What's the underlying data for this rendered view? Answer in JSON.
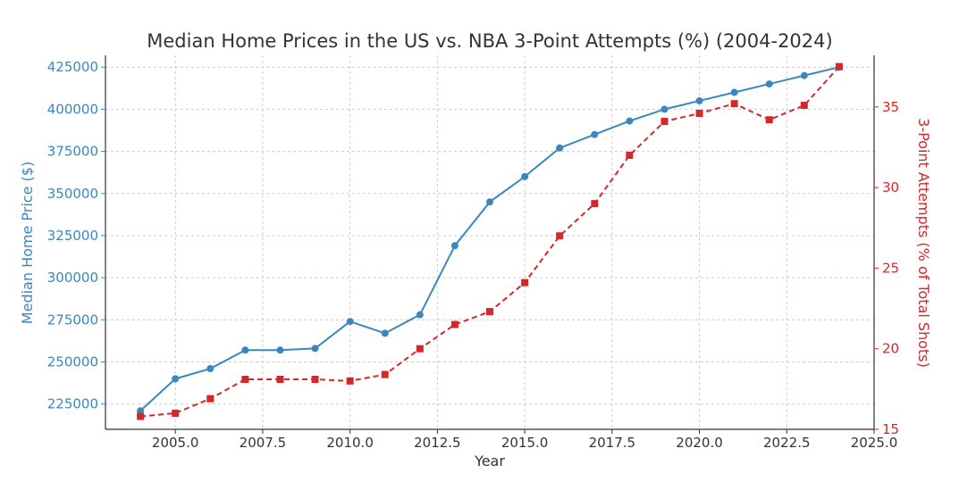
{
  "chart_data": {
    "type": "line",
    "title": "Median Home Prices in the US vs. NBA 3-Point Attempts (%) (2004-2024)",
    "xlabel": "Year",
    "ylabel_left": "Median Home Price ($)",
    "ylabel_right": "3-Point Attempts (% of Total Shots)",
    "xlim": [
      2003.0,
      2025.0
    ],
    "ylim_left": [
      210000,
      432000
    ],
    "ylim_right": [
      15,
      38.2
    ],
    "x_ticks": [
      2005.0,
      2007.5,
      2010.0,
      2012.5,
      2015.0,
      2017.5,
      2020.0,
      2022.5,
      2025.0
    ],
    "x_tick_labels": [
      "2005.0",
      "2007.5",
      "2010.0",
      "2012.5",
      "2015.0",
      "2017.5",
      "2020.0",
      "2022.5",
      "2025.0"
    ],
    "y_left_ticks": [
      225000,
      250000,
      275000,
      300000,
      325000,
      350000,
      375000,
      400000,
      425000
    ],
    "y_left_tick_labels": [
      "225000",
      "250000",
      "275000",
      "300000",
      "325000",
      "350000",
      "375000",
      "400000",
      "425000"
    ],
    "y_right_ticks": [
      15,
      20,
      25,
      30,
      35
    ],
    "y_right_tick_labels": [
      "15",
      "20",
      "25",
      "30",
      "35"
    ],
    "grid": true,
    "x": [
      2004,
      2005,
      2006,
      2007,
      2008,
      2009,
      2010,
      2011,
      2012,
      2013,
      2014,
      2015,
      2016,
      2017,
      2018,
      2019,
      2020,
      2021,
      2022,
      2023,
      2024
    ],
    "series": [
      {
        "axis": "left",
        "color": "#3a87c0",
        "line_style": "solid",
        "marker": "circle",
        "values": [
          221000,
          240000,
          246000,
          257000,
          257000,
          258000,
          274000,
          267000,
          278000,
          319000,
          345000,
          360000,
          377000,
          385000,
          393000,
          400000,
          405000,
          410000,
          415000,
          420000,
          425000
        ]
      },
      {
        "axis": "right",
        "color": "#d62728",
        "line_style": "dashed",
        "marker": "square",
        "values": [
          15.8,
          16.0,
          16.9,
          18.1,
          18.1,
          18.1,
          18.0,
          18.4,
          20.0,
          21.5,
          22.3,
          24.1,
          27.0,
          29.0,
          32.0,
          34.1,
          34.6,
          35.2,
          34.2,
          35.1,
          37.5
        ]
      }
    ],
    "colors": {
      "left_axis": "#3a87c0",
      "right_axis": "#d62728",
      "title": "#333333",
      "axis": "#333333"
    }
  }
}
